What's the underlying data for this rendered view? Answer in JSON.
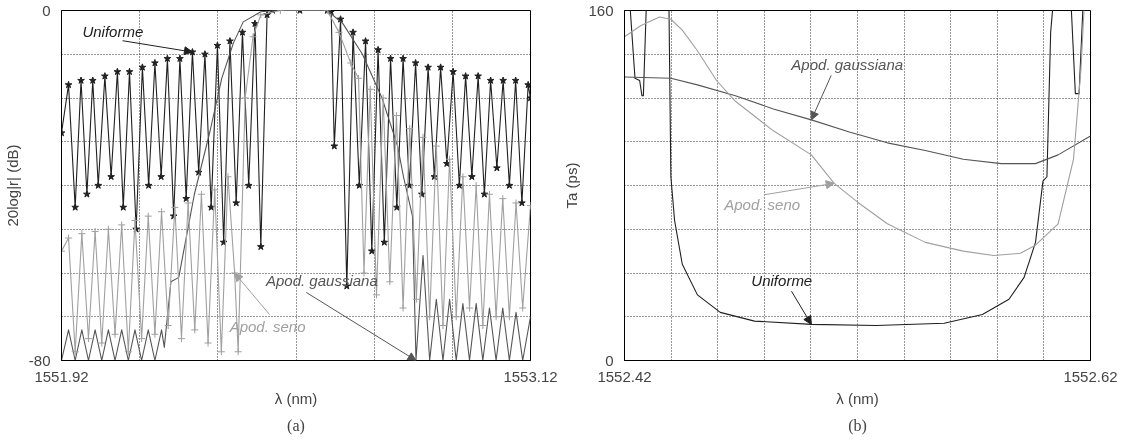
{
  "chart_data": [
    {
      "type": "line",
      "xlabel": "λ (nm)",
      "ylabel": "20log|r| (dB)",
      "xlim": [
        1551.92,
        1553.12
      ],
      "ylim": [
        -80,
        0
      ],
      "xticks": [
        1551.92,
        {
          "value": 1552.12,
          "label": null
        },
        {
          "value": 1552.32,
          "label": null
        },
        {
          "value": 1552.52,
          "label": null
        },
        {
          "value": 1552.72,
          "label": null
        },
        {
          "value": 1552.92,
          "label": null
        },
        1553.12
      ],
      "yticks": [
        -80,
        {
          "value": -70,
          "label": null
        },
        {
          "value": -60,
          "label": null
        },
        {
          "value": -50,
          "label": null
        },
        {
          "value": -40,
          "label": null
        },
        {
          "value": -30,
          "label": null
        },
        {
          "value": -20,
          "label": null
        },
        {
          "value": -10,
          "label": null
        },
        0
      ],
      "grid": true,
      "series": [
        {
          "color": "#202020",
          "marker": "star",
          "x": [
            1551.92,
            1551.938,
            1551.955,
            1551.97,
            1551.985,
            1552.0,
            1552.014,
            1552.031,
            1552.047,
            1552.063,
            1552.078,
            1552.094,
            1552.111,
            1552.127,
            1552.143,
            1552.159,
            1552.175,
            1552.191,
            1552.207,
            1552.223,
            1552.239,
            1552.255,
            1552.271,
            1552.287,
            1552.303,
            1552.319,
            1552.335,
            1552.351,
            1552.367,
            1552.383,
            1552.399,
            1552.415,
            1552.43,
            1552.446,
            1552.46,
            1552.53,
            1552.6,
            1552.61,
            1552.618,
            1552.634,
            1552.65,
            1552.666,
            1552.682,
            1552.698,
            1552.714,
            1552.73,
            1552.746,
            1552.762,
            1552.778,
            1552.794,
            1552.81,
            1552.826,
            1552.842,
            1552.858,
            1552.874,
            1552.89,
            1552.906,
            1552.922,
            1552.938,
            1552.954,
            1552.97,
            1552.986,
            1553.002,
            1553.018,
            1553.034,
            1553.05,
            1553.066,
            1553.082,
            1553.098,
            1553.114,
            1553.12
          ],
          "values": [
            -28,
            -17,
            -45,
            -16,
            -42,
            -16,
            -40,
            -15,
            -38,
            -14,
            -45,
            -14,
            -50,
            -13,
            -40,
            -12,
            -38,
            -11,
            -47,
            -11,
            -43,
            -9.5,
            -37,
            -10,
            -45,
            -8,
            -53,
            -7,
            -44,
            -5,
            -40,
            -3,
            -54,
            -1,
            0,
            0,
            0,
            -0.3,
            -31,
            -2,
            -63,
            -5,
            -40,
            -7,
            -55,
            -9,
            -53,
            -11,
            -45,
            -11,
            -40,
            -12,
            -42,
            -13,
            -38,
            -13,
            -35,
            -14,
            -40,
            -15,
            -38,
            -15,
            -42,
            -16,
            -36,
            -16,
            -40,
            -16,
            -44,
            -17,
            -20
          ]
        },
        {
          "color": "#555555",
          "x": [
            1551.92,
            1551.938,
            1551.955,
            1551.972,
            1551.989,
            1552.006,
            1552.023,
            1552.04,
            1552.057,
            1552.074,
            1552.091,
            1552.108,
            1552.125,
            1552.142,
            1552.159,
            1552.176,
            1552.183,
            1552.2,
            1552.22,
            1552.26,
            1552.3,
            1552.33,
            1552.36,
            1552.385,
            1552.43,
            1552.47,
            1552.6,
            1552.64,
            1552.69,
            1552.74,
            1552.78,
            1552.795,
            1552.818,
            1552.827,
            1552.845,
            1552.862,
            1552.879,
            1552.896,
            1552.913,
            1552.93,
            1552.947,
            1552.964,
            1552.981,
            1552.998,
            1553.015,
            1553.032,
            1553.049,
            1553.066,
            1553.083,
            1553.1,
            1553.12
          ],
          "values": [
            -80,
            -73,
            -80,
            -73,
            -80,
            -73,
            -80,
            -73,
            -80,
            -73,
            -80,
            -73,
            -80,
            -73,
            -80,
            -73,
            -77,
            -62,
            -61,
            -42,
            -27.6,
            -15.5,
            -7.4,
            -2.6,
            -0.3,
            0,
            0,
            -3,
            -10,
            -20,
            -31,
            -38,
            -47,
            -80,
            -56,
            -80,
            -66,
            -80,
            -66,
            -80,
            -67,
            -80,
            -67,
            -80,
            -68,
            -80,
            -68,
            -80,
            -69,
            -80,
            -70
          ]
        },
        {
          "color": "#a0a0a0",
          "marker": "cross",
          "x": [
            1551.92,
            1551.938,
            1551.955,
            1551.972,
            1551.989,
            1552.006,
            1552.023,
            1552.04,
            1552.057,
            1552.074,
            1552.091,
            1552.108,
            1552.125,
            1552.142,
            1552.159,
            1552.176,
            1552.193,
            1552.21,
            1552.227,
            1552.244,
            1552.261,
            1552.278,
            1552.295,
            1552.312,
            1552.329,
            1552.346,
            1552.363,
            1552.372,
            1552.39,
            1552.41,
            1552.43,
            1552.48,
            1552.6,
            1552.63,
            1552.66,
            1552.68,
            1552.694,
            1552.71,
            1552.726,
            1552.743,
            1552.76,
            1552.777,
            1552.794,
            1552.811,
            1552.828,
            1552.845,
            1552.862,
            1552.879,
            1552.896,
            1552.913,
            1552.93,
            1552.947,
            1552.964,
            1552.981,
            1552.998,
            1553.015,
            1553.032,
            1553.049,
            1553.066,
            1553.083,
            1553.1,
            1553.12
          ],
          "values": [
            -55,
            -52,
            -78,
            -51,
            -75,
            -50.5,
            -76,
            -50,
            -74,
            -49,
            -78,
            -48,
            -75,
            -47,
            -74,
            -46,
            -72,
            -45,
            -75,
            -44,
            -73,
            -42,
            -76,
            -41,
            -78,
            -38,
            -60,
            -78,
            -20,
            -6,
            -1,
            0,
            0,
            -5,
            -12,
            -15.5,
            -60,
            -18,
            -65,
            -20,
            -62,
            -24,
            -68,
            -27,
            -66,
            -29,
            -70,
            -31,
            -72,
            -34,
            -70,
            -38,
            -68,
            -40,
            -72,
            -42,
            -70,
            -43,
            -70,
            -44,
            -68,
            -44.6
          ]
        }
      ],
      "annotations": [
        {
          "text": "Uniforme",
          "x": 1552.255,
          "y": -9.5
        },
        {
          "text": "Apod. gaussiana",
          "x": 1552.827,
          "y": -80
        },
        {
          "text": "Apod. seno",
          "x": 1552.363,
          "y": -60
        },
        "(a)"
      ]
    },
    {
      "type": "line",
      "xlabel": "λ (nm)",
      "ylabel": "Ta (ps)",
      "xlim": [
        1552.42,
        1552.62
      ],
      "ylim": [
        0,
        160
      ],
      "xticks": [
        1552.42,
        {
          "value": 1552.44,
          "label": null
        },
        {
          "value": 1552.46,
          "label": null
        },
        {
          "value": 1552.48,
          "label": null
        },
        {
          "value": 1552.5,
          "label": null
        },
        {
          "value": 1552.52,
          "label": null
        },
        {
          "value": 1552.54,
          "label": null
        },
        {
          "value": 1552.56,
          "label": null
        },
        {
          "value": 1552.58,
          "label": null
        },
        {
          "value": 1552.6,
          "label": null
        },
        1552.62
      ],
      "yticks": [
        0,
        {
          "value": 20,
          "label": null
        },
        {
          "value": 40,
          "label": null
        },
        {
          "value": 60,
          "label": null
        },
        {
          "value": 80,
          "label": null
        },
        {
          "value": 100,
          "label": null
        },
        {
          "value": 120,
          "label": null
        },
        {
          "value": 140,
          "label": null
        },
        160
      ],
      "grid": true,
      "series": [
        {
          "color": "#202020",
          "x": [
            1552.42,
            1552.4225,
            1552.4245,
            1552.4265,
            1552.4275,
            1552.4281,
            1552.4293,
            1552.434,
            1552.4391,
            1552.4399,
            1552.4415,
            1552.4448,
            1552.4513,
            1552.4611,
            1552.4758,
            1552.5002,
            1552.528,
            1552.5572,
            1552.5736,
            1552.585,
            1552.5915,
            1552.5964,
            1552.5996,
            1552.6013,
            1552.6029,
            1552.6037,
            1552.608,
            1552.6118,
            1552.6135,
            1552.6151,
            1552.6167
          ],
          "values": [
            160,
            160,
            129,
            128,
            121,
            121,
            160,
            null,
            160,
            84,
            64,
            44,
            30,
            22,
            18,
            16.5,
            16,
            17,
            21,
            28,
            38,
            54,
            82,
            84,
            150,
            160,
            null,
            160,
            122,
            122,
            160
          ]
        },
        {
          "color": "#555555",
          "x": [
            1552.42,
            1552.4399,
            1552.4513,
            1552.4676,
            1552.4839,
            1552.5002,
            1552.5165,
            1552.5328,
            1552.5491,
            1552.5654,
            1552.5817,
            1552.5964,
            1552.6061,
            1552.62
          ],
          "values": [
            129.6,
            129,
            126,
            121,
            115,
            110,
            104.5,
            99.5,
            96,
            92,
            90,
            90,
            94,
            102.6
          ]
        },
        {
          "color": "#a0a0a0",
          "x": [
            1552.42,
            1552.4269,
            1552.435,
            1552.4399,
            1552.4448,
            1552.4513,
            1552.4595,
            1552.4676,
            1552.4839,
            1552.5002,
            1552.51,
            1552.5198,
            1552.5328,
            1552.5491,
            1552.5654,
            1552.5784,
            1552.5899,
            1552.5964,
            1552.6061,
            1552.6127,
            1552.6159,
            1552.6172
          ],
          "values": [
            148,
            153,
            157,
            156,
            151,
            141.6,
            128,
            118.5,
            105,
            94,
            81,
            72.6,
            62.5,
            54,
            50,
            48,
            49,
            52.7,
            62.5,
            92,
            133,
            160
          ]
        }
      ],
      "annotations": [
        {
          "text": "Uniforme",
          "x": 1552.5002,
          "y": 16.5
        },
        {
          "text": "Apod. gaussiana",
          "x": 1552.5002,
          "y": 110
        },
        {
          "text": "Apod. seno",
          "x": 1552.51,
          "y": 81
        },
        "(b)"
      ]
    }
  ]
}
